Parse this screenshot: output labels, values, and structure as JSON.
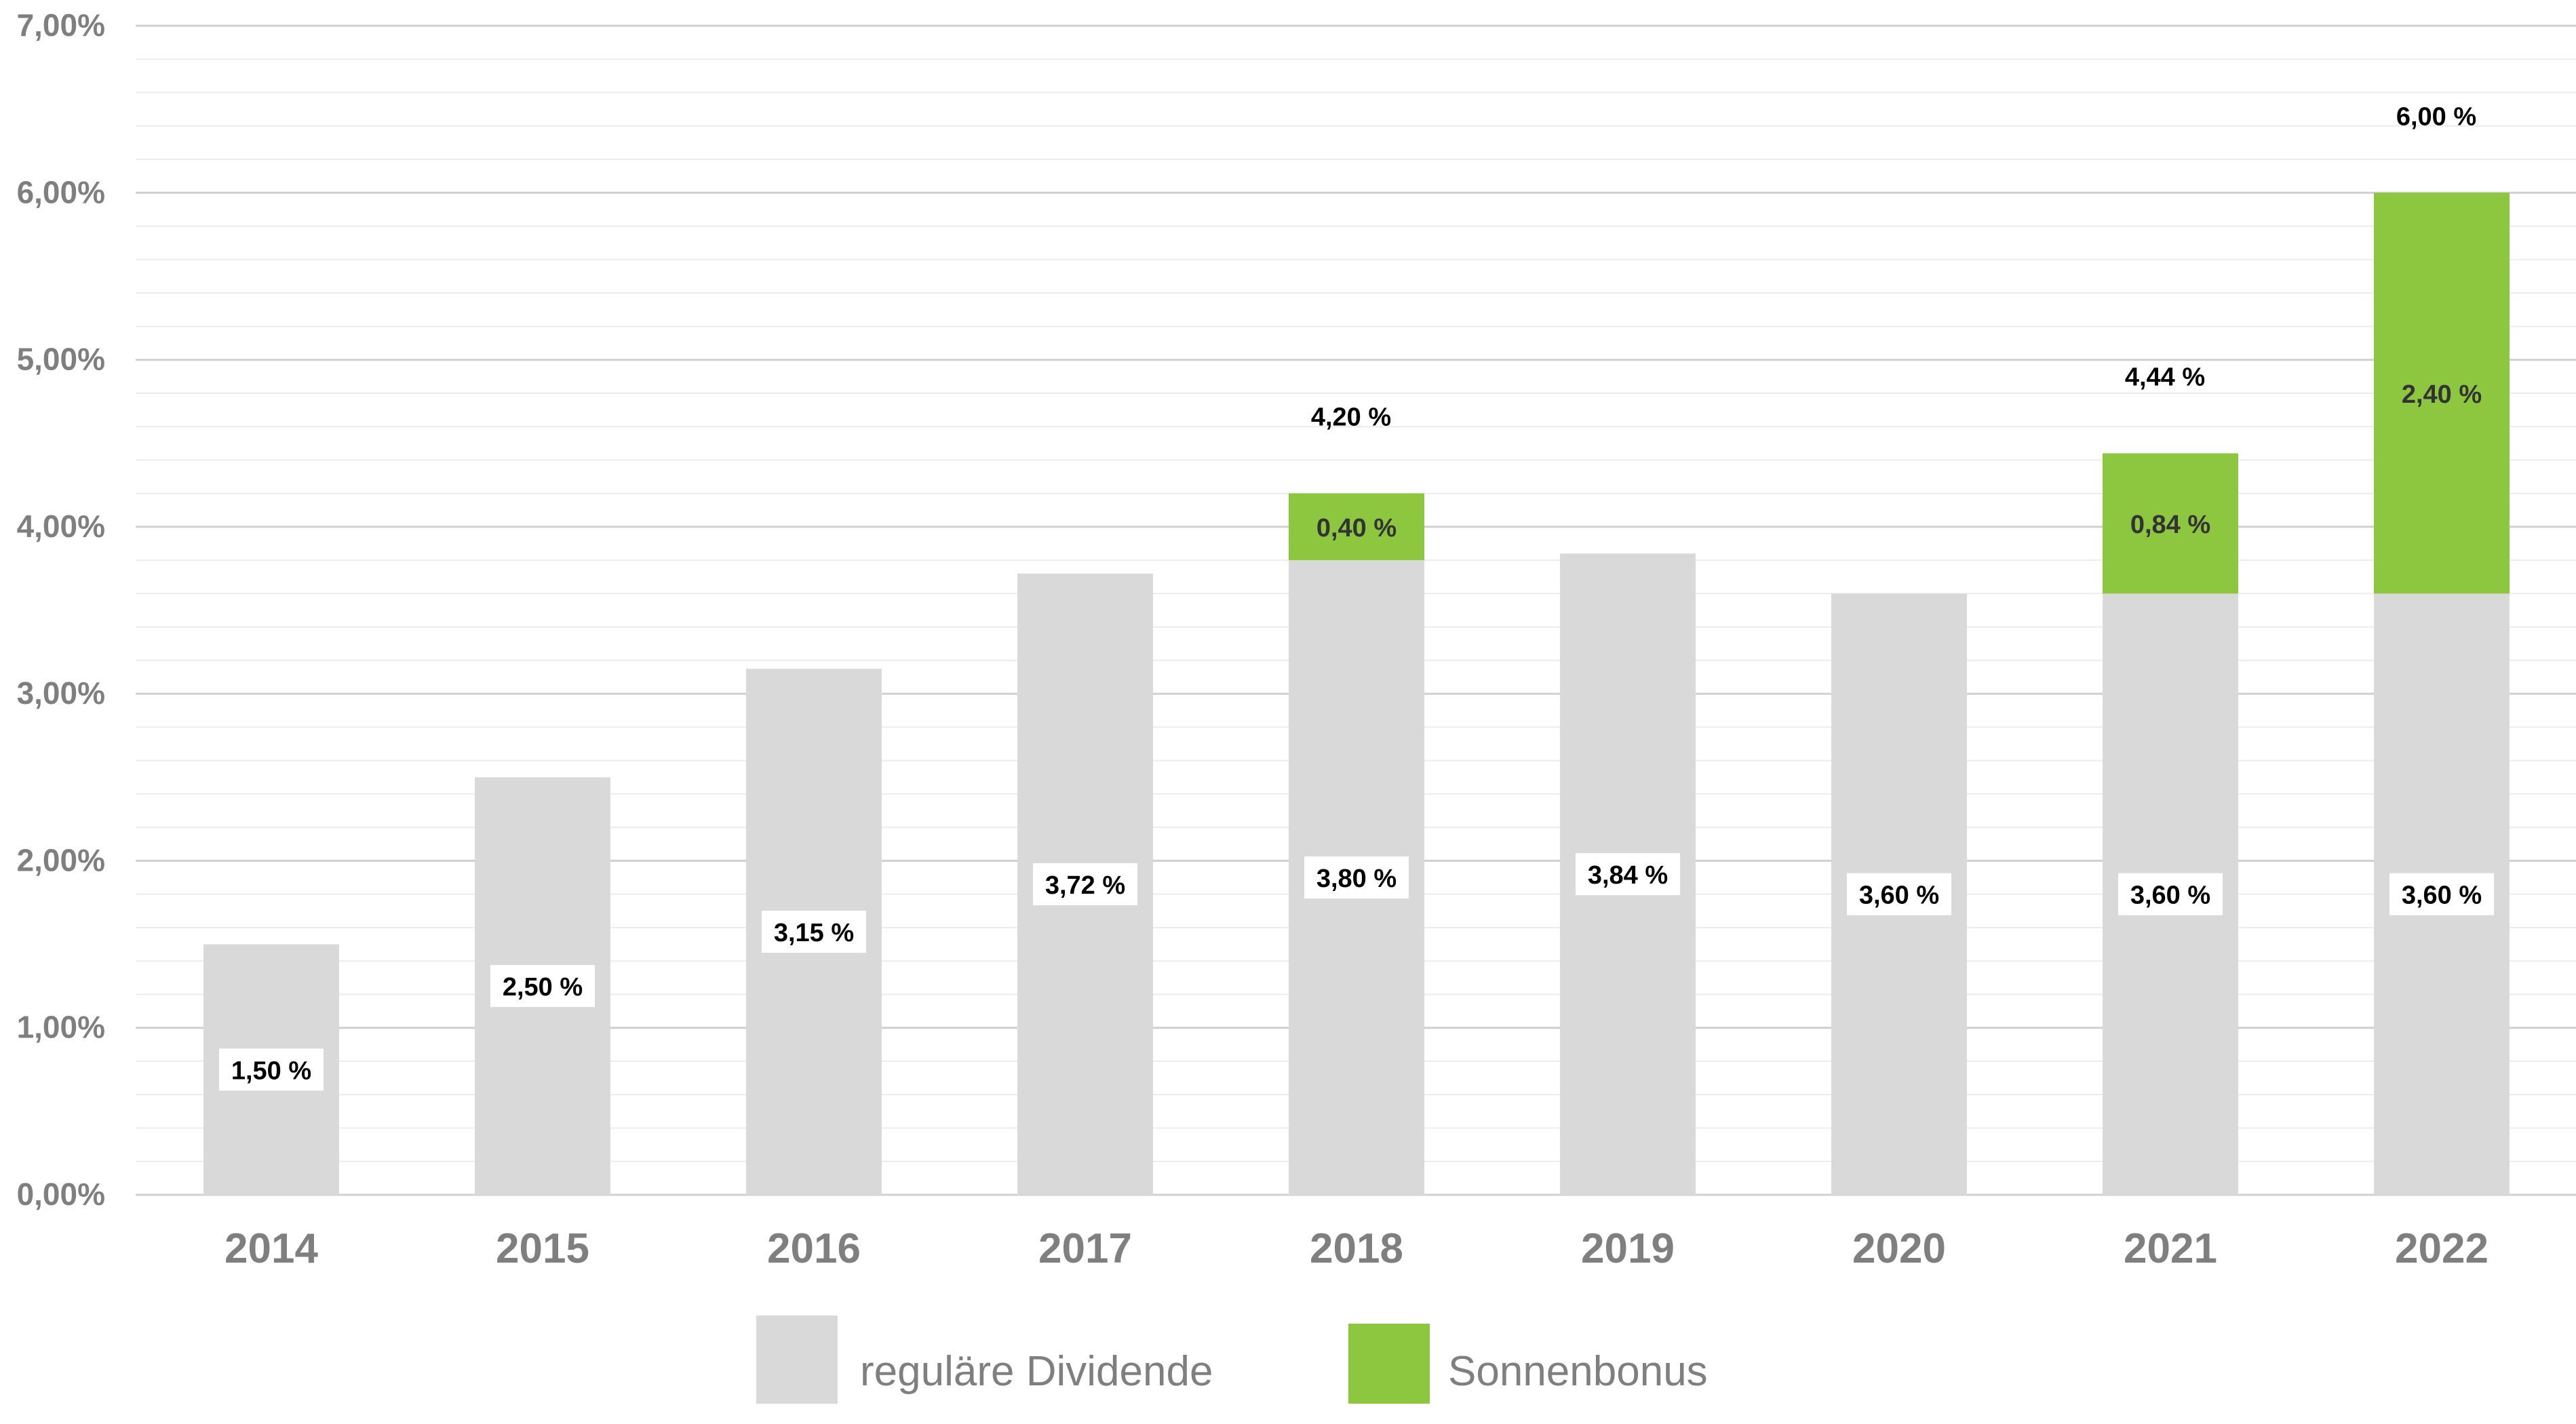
{
  "chart_data": {
    "type": "bar",
    "stacked": true,
    "categories": [
      "2014",
      "2015",
      "2016",
      "2017",
      "2018",
      "2019",
      "2020",
      "2021",
      "2022"
    ],
    "series": [
      {
        "name": "reguläre Dividende",
        "color": "#d9d9d9",
        "values": [
          1.5,
          2.5,
          3.15,
          3.72,
          3.8,
          3.84,
          3.6,
          3.6,
          3.6
        ],
        "labels": [
          "1,50 %",
          "2,50 %",
          "3,15 %",
          "3,72 %",
          "3,80 %",
          "3,84 %",
          "3,60 %",
          "3,60 %",
          "3,60 %"
        ]
      },
      {
        "name": "Sonnenbonus",
        "color": "#8dc63f",
        "values": [
          0,
          0,
          0,
          0,
          0.4,
          0,
          0,
          0.84,
          2.4
        ],
        "labels": [
          "",
          "",
          "",
          "",
          "0,40 %",
          "",
          "",
          "0,84 %",
          "2,40 %"
        ]
      }
    ],
    "totals": [
      {
        "category": "2018",
        "value": 4.2,
        "label": "4,20 %"
      },
      {
        "category": "2021",
        "value": 4.44,
        "label": "4,44 %"
      },
      {
        "category": "2022",
        "value": 6.0,
        "label": "6,00 %"
      }
    ],
    "ylim": [
      0,
      7
    ],
    "y_ticks": [
      0,
      1,
      2,
      3,
      4,
      5,
      6,
      7
    ],
    "y_tick_labels": [
      "0,00%",
      "1,00%",
      "2,00%",
      "3,00%",
      "4,00%",
      "5,00%",
      "6,00%",
      "7,00%"
    ],
    "y_minor_step": 0.2,
    "grid": true,
    "legend_position": "bottom-center",
    "title": "",
    "xlabel": "",
    "ylabel": ""
  },
  "legend": {
    "items": [
      {
        "label": "reguläre Dividende",
        "color": "#d9d9d9"
      },
      {
        "label": "Sonnenbonus",
        "color": "#8dc63f"
      }
    ]
  }
}
